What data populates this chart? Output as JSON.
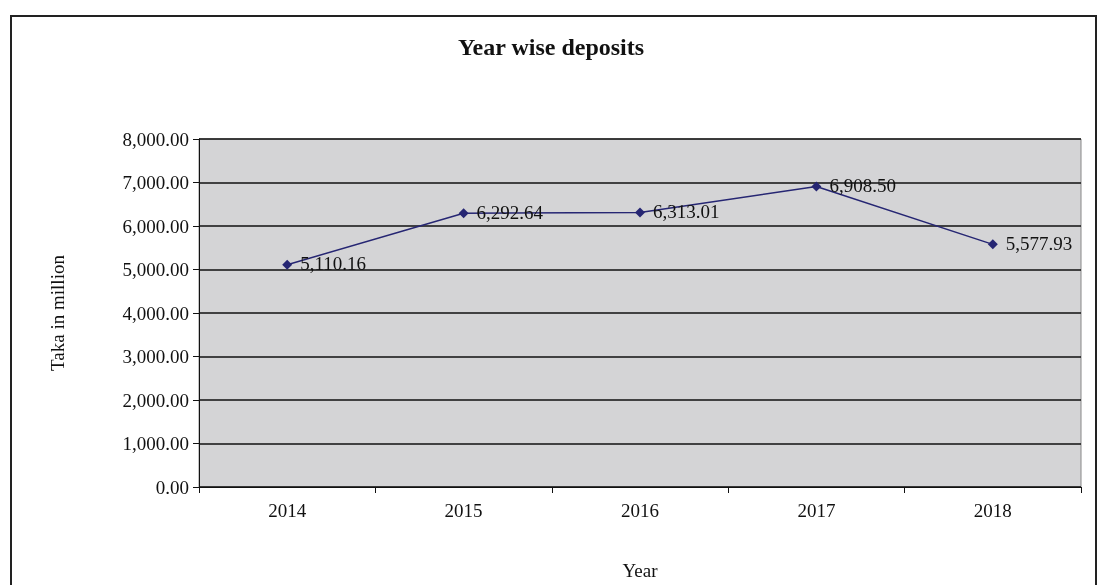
{
  "chart_data": {
    "type": "line",
    "title": "Year wise deposits",
    "xlabel": "Year",
    "ylabel": "Taka in million",
    "categories": [
      "2014",
      "2015",
      "2016",
      "2017",
      "2018"
    ],
    "series": [
      {
        "color": "#262673",
        "values": [
          5110.16,
          6292.64,
          6313.01,
          6908.5,
          5577.93
        ],
        "value_labels": [
          "5,110.16",
          "6,292.64",
          "6,313.01",
          "6,908.50",
          "5,577.93"
        ]
      }
    ],
    "ylim": [
      0,
      8000
    ],
    "yticks": [
      {
        "value": 0,
        "label": "0.00"
      },
      {
        "value": 1000,
        "label": "1,000.00"
      },
      {
        "value": 2000,
        "label": "2,000.00"
      },
      {
        "value": 3000,
        "label": "3,000.00"
      },
      {
        "value": 4000,
        "label": "4,000.00"
      },
      {
        "value": 5000,
        "label": "5,000.00"
      },
      {
        "value": 6000,
        "label": "6,000.00"
      },
      {
        "value": 7000,
        "label": "7,000.00"
      },
      {
        "value": 8000,
        "label": "8,000.00"
      }
    ],
    "grid": "y",
    "marker": "diamond",
    "line_style": "solid"
  }
}
